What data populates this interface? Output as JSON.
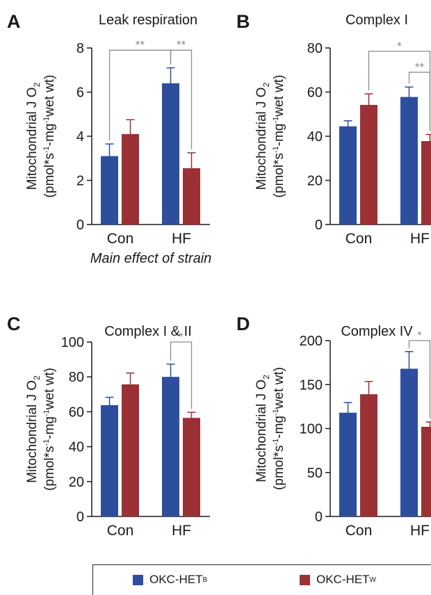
{
  "colors": {
    "series_b": "#2d4e9c",
    "series_w": "#9b3135",
    "axis": "#1a1a1a",
    "sig": "#8c8c8c"
  },
  "legend": [
    {
      "label": "OKC-HET",
      "sup": "B",
      "color": "#2d4e9c"
    },
    {
      "label": "OKC-HET",
      "sup": "W",
      "color": "#9b3135"
    }
  ],
  "chart_data": [
    {
      "type": "bar",
      "panel_label": "A",
      "title": "Leak respiration",
      "ylabel": [
        "Mitochondrial J O",
        "(pmol*s",
        "-mg",
        "wet wt)"
      ],
      "categories": [
        "Con",
        "HF"
      ],
      "series": [
        {
          "name": "OKC-HET B",
          "values": [
            3.1,
            6.4
          ],
          "errors": [
            0.55,
            0.7
          ]
        },
        {
          "name": "OKC-HET W",
          "values": [
            4.1,
            2.55
          ],
          "errors": [
            0.65,
            0.7
          ]
        }
      ],
      "ylim": [
        0,
        8
      ],
      "yticks": [
        0,
        2,
        4,
        6,
        8
      ],
      "significance": [
        {
          "from": [
            0,
            0
          ],
          "to": [
            1,
            0
          ],
          "label": "**",
          "level": 7.9
        },
        {
          "from": [
            1,
            0
          ],
          "to": [
            1,
            1
          ],
          "label": "**",
          "level": 7.9
        }
      ],
      "note": "Main effect of strain"
    },
    {
      "type": "bar",
      "panel_label": "B",
      "title": "Complex I",
      "ylabel": [
        "Mitochondrial J O",
        "(pmol*s",
        "-mg",
        "wet wt)"
      ],
      "categories": [
        "Con",
        "HF"
      ],
      "series": [
        {
          "name": "OKC-HET B",
          "values": [
            44.5,
            57.8
          ],
          "errors": [
            2.5,
            4.5
          ]
        },
        {
          "name": "OKC-HET W",
          "values": [
            54.2,
            37.8
          ],
          "errors": [
            5.0,
            3.0
          ]
        }
      ],
      "ylim": [
        0,
        80
      ],
      "yticks": [
        0,
        20,
        40,
        60,
        80
      ],
      "significance": [
        {
          "from": [
            0,
            1
          ],
          "to": [
            1,
            1
          ],
          "label": "*",
          "level": 78.5
        },
        {
          "from": [
            1,
            0
          ],
          "to": [
            1,
            1
          ],
          "label": "**",
          "level": 69
        }
      ]
    },
    {
      "type": "bar",
      "panel_label": "C",
      "title": "Complex I & II",
      "ylabel": [
        "Mitochondrial J O",
        "(pmol*s",
        "-mg",
        "wet wt)"
      ],
      "categories": [
        "Con",
        "HF"
      ],
      "series": [
        {
          "name": "OKC-HET B",
          "values": [
            63.8,
            80.0
          ],
          "errors": [
            4.5,
            7.3
          ]
        },
        {
          "name": "OKC-HET W",
          "values": [
            75.7,
            56.5
          ],
          "errors": [
            6.5,
            3.2
          ]
        }
      ],
      "ylim": [
        0,
        100
      ],
      "yticks": [
        0,
        20,
        40,
        60,
        80,
        100
      ],
      "significance": [
        {
          "from": [
            1,
            0
          ],
          "to": [
            1,
            1
          ],
          "label": "*",
          "level": 100
        }
      ]
    },
    {
      "type": "bar",
      "panel_label": "D",
      "title": "Complex IV",
      "ylabel": [
        "Mitochondrial J O",
        "(pmol*s",
        "-mg",
        "wet wt)"
      ],
      "categories": [
        "Con",
        "HF"
      ],
      "series": [
        {
          "name": "OKC-HET B",
          "values": [
            118,
            168
          ],
          "errors": [
            11.5,
            19.5
          ]
        },
        {
          "name": "OKC-HET W",
          "values": [
            139,
            102
          ],
          "errors": [
            14.5,
            5.5
          ]
        }
      ],
      "ylim": [
        0,
        200
      ],
      "yticks": [
        0,
        50,
        100,
        150,
        200
      ],
      "significance": [
        {
          "from": [
            1,
            0
          ],
          "to": [
            1,
            1
          ],
          "label": "*",
          "level": 200
        }
      ]
    }
  ]
}
